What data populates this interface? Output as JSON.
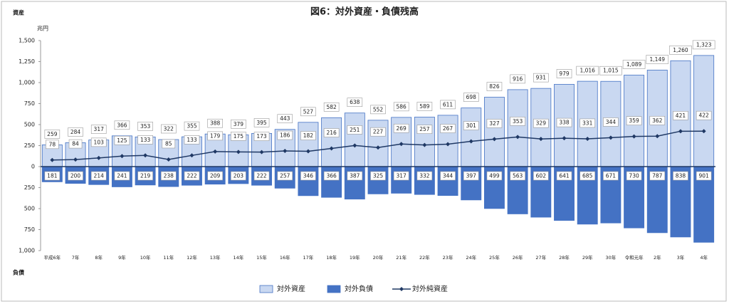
{
  "chart_data": {
    "type": "bar-line",
    "title": "図6：対外資産・負債残高",
    "y_label_top": "資産",
    "y_label_bottom": "負債",
    "unit": "兆円",
    "categories": [
      "平成6年",
      "7年",
      "8年",
      "9年",
      "10年",
      "11年",
      "12年",
      "13年",
      "14年",
      "15年",
      "16年",
      "17年",
      "18年",
      "19年",
      "20年",
      "21年",
      "22年",
      "23年",
      "24年",
      "25年",
      "26年",
      "27年",
      "28年",
      "29年",
      "30年",
      "令和元年",
      "2年",
      "3年",
      "4年"
    ],
    "series": [
      {
        "name": "対外資産",
        "type": "bar",
        "color": "#c9d8f1",
        "values": [
          259,
          284,
          317,
          366,
          353,
          322,
          355,
          388,
          379,
          395,
          443,
          527,
          582,
          638,
          552,
          586,
          589,
          611,
          698,
          826,
          916,
          931,
          979,
          1016,
          1015,
          1089,
          1149,
          1260,
          1323
        ],
        "value_labels": [
          "259",
          "284",
          "317",
          "366",
          "353",
          "322",
          "355",
          "388",
          "379",
          "395",
          "443",
          "527",
          "582",
          "638",
          "552",
          "586",
          "589",
          "611",
          "698",
          "826",
          "916",
          "931",
          "979",
          "1,016",
          "1,015",
          "1,089",
          "1,149",
          "1,260",
          "1,323"
        ]
      },
      {
        "name": "対外負債",
        "type": "bar",
        "color": "#4472c4",
        "values": [
          -181,
          -200,
          -214,
          -241,
          -219,
          -238,
          -222,
          -209,
          -203,
          -222,
          -257,
          -346,
          -366,
          -387,
          -325,
          -317,
          -332,
          -344,
          -397,
          -499,
          -563,
          -602,
          -641,
          -685,
          -671,
          -730,
          -787,
          -838,
          -901
        ],
        "value_labels": [
          "181",
          "200",
          "214",
          "241",
          "219",
          "238",
          "222",
          "209",
          "203",
          "222",
          "257",
          "346",
          "366",
          "387",
          "325",
          "317",
          "332",
          "344",
          "397",
          "499",
          "563",
          "602",
          "641",
          "685",
          "671",
          "730",
          "787",
          "838",
          "901"
        ]
      },
      {
        "name": "対外純資産",
        "type": "line",
        "color": "#1f3864",
        "values": [
          78,
          84,
          103,
          125,
          133,
          85,
          133,
          179,
          175,
          173,
          186,
          182,
          216,
          251,
          227,
          269,
          257,
          267,
          301,
          327,
          353,
          329,
          338,
          331,
          344,
          359,
          362,
          421,
          422
        ]
      }
    ],
    "ylim": [
      -1000,
      1500
    ],
    "yticks": [
      {
        "value": -1000,
        "label": "1,000"
      },
      {
        "value": -750,
        "label": "750"
      },
      {
        "value": -500,
        "label": "500"
      },
      {
        "value": -250,
        "label": "250"
      },
      0,
      250,
      500,
      750,
      {
        "value": 1000,
        "label": "1,000"
      },
      {
        "value": 1250,
        "label": "1,250"
      },
      {
        "value": 1500,
        "label": "1,500"
      }
    ],
    "legend": "bottom"
  }
}
